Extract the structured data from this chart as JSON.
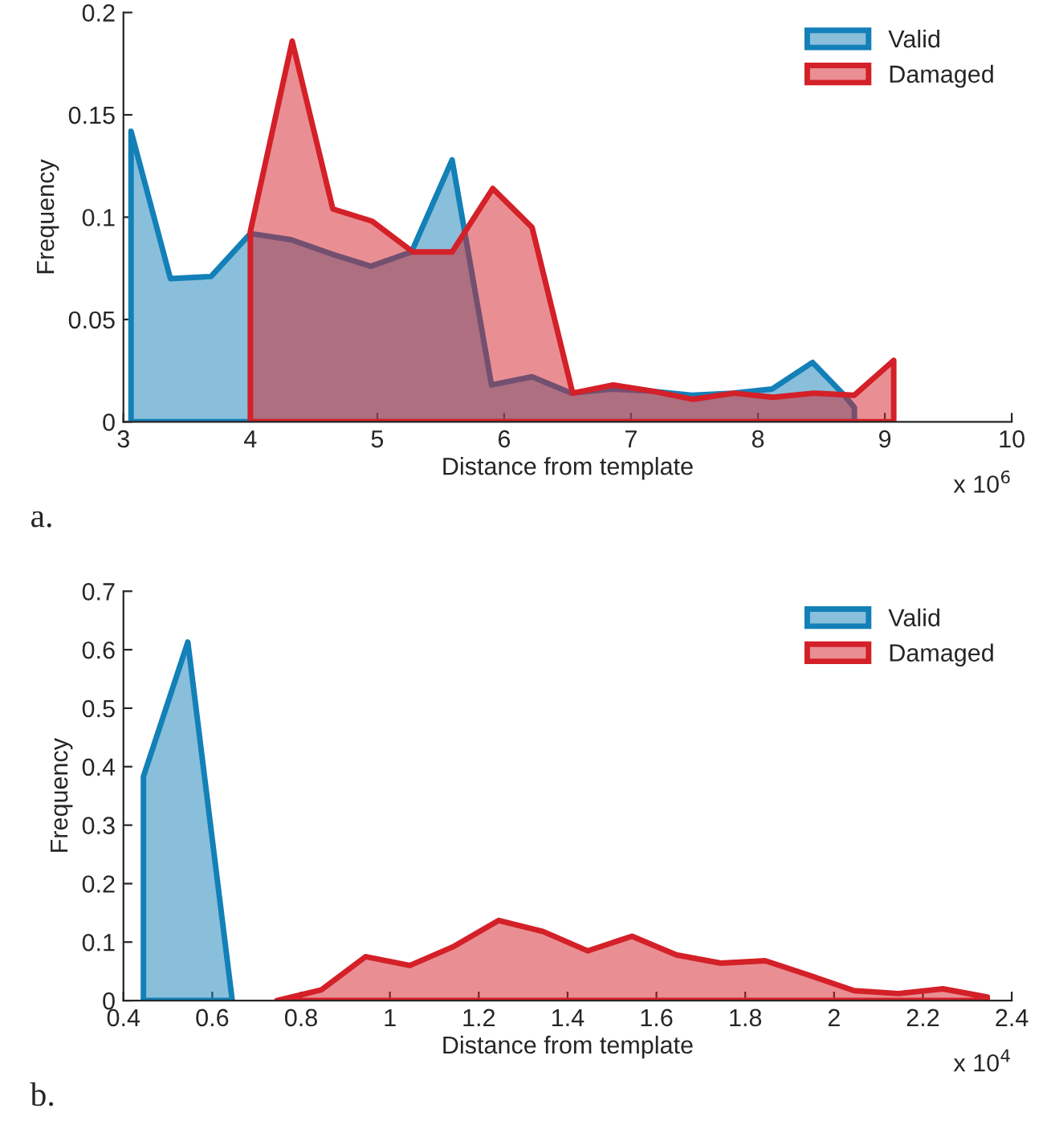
{
  "chart_data": [
    {
      "type": "area",
      "xlabel": "Distance from template",
      "ylabel": "Frequency",
      "xlim": [
        3,
        10
      ],
      "xticks": [
        3,
        4,
        5,
        6,
        7,
        8,
        9,
        10
      ],
      "ylim": [
        0,
        0.2
      ],
      "yticks": [
        0,
        0.05,
        0.1,
        0.15,
        0.2
      ],
      "legend": "top right",
      "grid": false,
      "annotations": [
        "x 10$^{6}$",
        "a."
      ],
      "series": [
        {
          "name": "Valid",
          "color": "#1380b8",
          "x": [
            3.06,
            3.37,
            3.69,
            4.0,
            4.32,
            4.64,
            4.95,
            5.27,
            5.59,
            5.9,
            6.22,
            6.53,
            6.85,
            7.16,
            7.48,
            7.8,
            8.11,
            8.43,
            8.68,
            8.76
          ],
          "values": [
            0.142,
            0.07,
            0.071,
            0.092,
            0.089,
            0.082,
            0.076,
            0.083,
            0.128,
            0.018,
            0.022,
            0.014,
            0.016,
            0.015,
            0.013,
            0.014,
            0.016,
            0.029,
            0.013,
            0.007
          ]
        },
        {
          "name": "Damaged",
          "color": "#d42028",
          "x": [
            4.0,
            4.33,
            4.65,
            4.96,
            5.28,
            5.59,
            5.91,
            6.22,
            6.54,
            6.86,
            7.17,
            7.49,
            7.81,
            8.12,
            8.44,
            8.76,
            9.07
          ],
          "values": [
            0.093,
            0.186,
            0.104,
            0.098,
            0.083,
            0.083,
            0.114,
            0.095,
            0.014,
            0.018,
            0.015,
            0.011,
            0.014,
            0.012,
            0.014,
            0.013,
            0.03
          ]
        }
      ]
    },
    {
      "type": "area",
      "xlabel": "Distance from template",
      "ylabel": "Frequency",
      "xlim": [
        0.4,
        2.4
      ],
      "xticks": [
        0.4,
        0.6,
        0.8,
        1,
        1.2,
        1.4,
        1.6,
        1.8,
        2,
        2.2,
        2.4
      ],
      "ylim": [
        0,
        0.7
      ],
      "yticks": [
        0,
        0.1,
        0.2,
        0.3,
        0.4,
        0.5,
        0.6,
        0.7
      ],
      "legend": "top right",
      "grid": false,
      "annotations": [
        "x 10$^{4}$",
        "b."
      ],
      "series": [
        {
          "name": "Valid",
          "color": "#1380b8",
          "x": [
            0.445,
            0.545,
            0.645
          ],
          "values": [
            0.383,
            0.613,
            0
          ]
        },
        {
          "name": "Damaged",
          "color": "#d42028",
          "x": [
            0.745,
            0.845,
            0.945,
            1.045,
            1.145,
            1.245,
            1.345,
            1.445,
            1.545,
            1.645,
            1.745,
            1.845,
            1.945,
            2.045,
            2.145,
            2.245,
            2.345
          ],
          "values": [
            0,
            0.018,
            0.075,
            0.06,
            0.093,
            0.137,
            0.118,
            0.085,
            0.11,
            0.078,
            0.064,
            0.068,
            0.043,
            0.017,
            0.012,
            0.02,
            0.006
          ]
        }
      ]
    }
  ]
}
